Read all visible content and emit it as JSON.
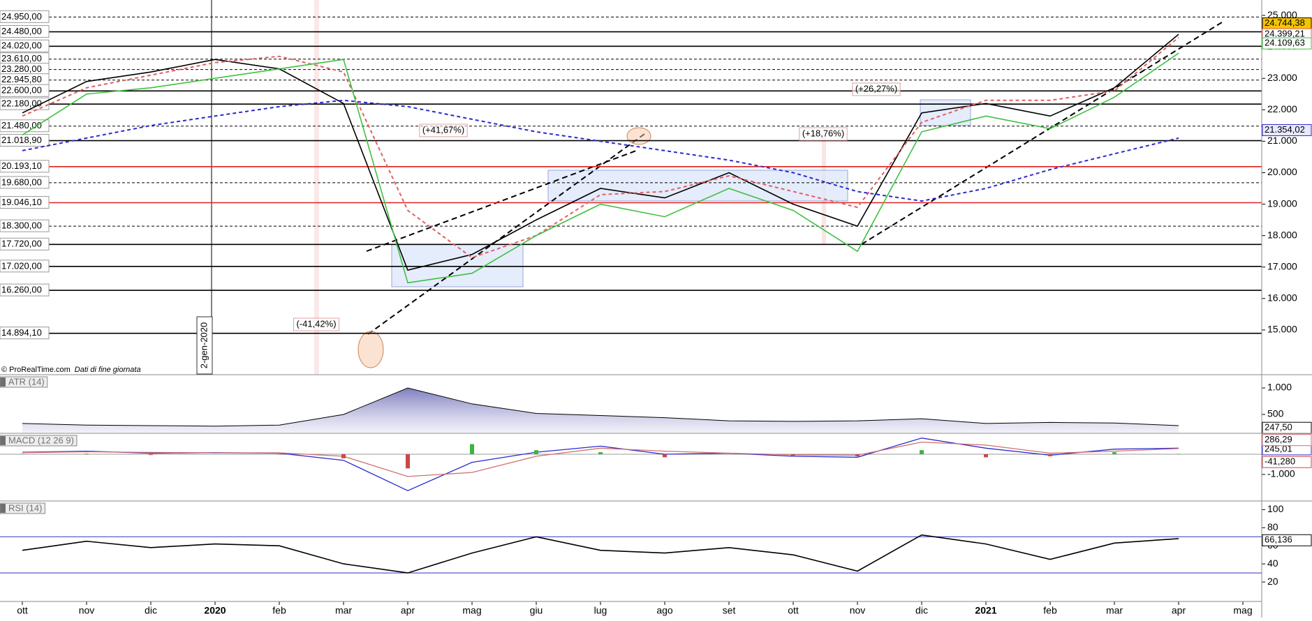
{
  "chart_data": [
    {
      "type": "line",
      "categories": [
        "ott",
        "nov",
        "dic",
        "2020",
        "feb",
        "mar",
        "apr",
        "mag",
        "giu",
        "lug",
        "ago",
        "set",
        "ott",
        "nov",
        "dic",
        "2021",
        "feb",
        "mar",
        "apr",
        "mag"
      ],
      "ylim": [
        13600,
        25490
      ],
      "yticks": [
        {
          "value": 15000,
          "label": "15.000"
        },
        {
          "value": 16000,
          "label": "16.000"
        },
        {
          "value": 17000,
          "label": "17.000"
        },
        {
          "value": 18000,
          "label": "18.000"
        },
        {
          "value": 19000,
          "label": "19.000"
        },
        {
          "value": 20000,
          "label": "20.000"
        },
        {
          "value": 21000,
          "label": "21.000"
        },
        {
          "value": 22000,
          "label": "22.000"
        },
        {
          "value": 23000,
          "label": "23.000"
        },
        {
          "value": 24000,
          "label": "24.000"
        },
        {
          "value": 25000,
          "label": "25.000"
        }
      ],
      "levels": [
        {
          "value": 24950,
          "label": "24.950,00",
          "color": "#000000",
          "style": "dashed"
        },
        {
          "value": 24480,
          "label": "24.480,00",
          "color": "#000000",
          "style": "solid"
        },
        {
          "value": 24020,
          "label": "24.020,00",
          "color": "#000000",
          "style": "solid"
        },
        {
          "value": 23610,
          "label": "23.610,00",
          "color": "#000000",
          "style": "dashed"
        },
        {
          "value": 23280,
          "label": "23.280,00",
          "color": "#000000",
          "style": "dashed"
        },
        {
          "value": 22945.8,
          "label": "22.945,80",
          "color": "#000000",
          "style": "dashed"
        },
        {
          "value": 22600,
          "label": "22.600,00",
          "color": "#000000",
          "style": "solid"
        },
        {
          "value": 22180,
          "label": "22.180,00",
          "color": "#000000",
          "style": "solid"
        },
        {
          "value": 21480,
          "label": "21.480,00",
          "color": "#000000",
          "style": "dashed"
        },
        {
          "value": 21018.9,
          "label": "21.018,90",
          "color": "#000000",
          "style": "solid"
        },
        {
          "value": 20193.1,
          "label": "20.193,10",
          "color": "#e02020",
          "style": "solid"
        },
        {
          "value": 19680,
          "label": "19.680,00",
          "color": "#000000",
          "style": "dashed"
        },
        {
          "value": 19046.1,
          "label": "19.046,10",
          "color": "#e02020",
          "style": "solid"
        },
        {
          "value": 18300,
          "label": "18.300,00",
          "color": "#000000",
          "style": "dashed"
        },
        {
          "value": 17720,
          "label": "17.720,00",
          "color": "#000000",
          "style": "solid"
        },
        {
          "value": 17020,
          "label": "17.020,00",
          "color": "#000000",
          "style": "solid"
        },
        {
          "value": 16260,
          "label": "16.260,00",
          "color": "#000000",
          "style": "solid"
        },
        {
          "value": 14894.1,
          "label": "14.894,10",
          "color": "#000000",
          "style": "solid"
        }
      ],
      "series": [
        {
          "color": "#000000",
          "style": "solid",
          "values": [
            21900,
            22900,
            23200,
            23600,
            23300,
            22200,
            16900,
            17400,
            18500,
            19500,
            19200,
            20000,
            19000,
            18300,
            21900,
            22200,
            21800,
            22700,
            24400,
            null
          ],
          "last_value": 24744.38,
          "last_label": "24.744,38",
          "label_bg": "#f5c400"
        },
        {
          "color": "#e06060",
          "style": "dashed",
          "values": [
            21800,
            22700,
            23100,
            23500,
            23700,
            23200,
            18800,
            17300,
            18000,
            19300,
            19400,
            19900,
            19400,
            18900,
            21600,
            22300,
            22300,
            22600,
            24300,
            null
          ],
          "last_value": 24399.21,
          "last_label": "24.399,21",
          "label_bg": "#ffffff"
        },
        {
          "color": "#2a2ad0",
          "style": "dashed",
          "values": [
            20700,
            21100,
            21500,
            21800,
            22100,
            22300,
            22100,
            21700,
            21300,
            21000,
            20700,
            20400,
            20000,
            19400,
            19100,
            19500,
            20100,
            20600,
            21100,
            null
          ],
          "last_value": 21354.02,
          "last_label": "21.354,02",
          "label_bg": "#e8e8ff"
        },
        {
          "color": "#40c040",
          "style": "solid",
          "values": [
            21200,
            22500,
            22700,
            23000,
            23300,
            23600,
            16500,
            16800,
            18000,
            19000,
            18600,
            19500,
            18800,
            17500,
            21300,
            21800,
            21400,
            22400,
            23800,
            null
          ],
          "last_value": 24109.63,
          "last_label": "24.109,63",
          "label_bg": "#ffffff"
        }
      ],
      "annotations": [
        "(-41,42%)",
        "(+41,67%)",
        "(+18,76%)",
        "(+26,27%)"
      ],
      "marker_label": "2-gen-2020",
      "source": "© ProRealTime.com",
      "note": "Dati di fine giornata"
    },
    {
      "type": "area",
      "title": "ATR (14)",
      "ylim": [
        158,
        1224
      ],
      "yticks": [
        {
          "value": 1000,
          "label": "1.000"
        },
        500
      ],
      "color": "#5a5aa8",
      "values": [
        330,
        300,
        290,
        280,
        300,
        500,
        1000,
        700,
        520,
        480,
        440,
        380,
        370,
        380,
        420,
        330,
        350,
        340,
        290,
        null
      ],
      "last_value": 247.5,
      "last_label": "247,50"
    },
    {
      "type": "macd",
      "title": "MACD (12 26 9)",
      "ylim": [
        -2276,
        965
      ],
      "yticks": [
        {
          "value": -1000,
          "label": "-1.000"
        }
      ],
      "series": [
        {
          "kind": "line",
          "color": "#2a2ad0",
          "values": [
            100,
            150,
            50,
            80,
            50,
            -300,
            -1800,
            -400,
            100,
            400,
            0,
            50,
            -100,
            -150,
            800,
            300,
            -50,
            250,
            300,
            null
          ],
          "last_value": 245.01,
          "last_label": "245,01"
        },
        {
          "kind": "line",
          "color": "#d07070",
          "values": [
            80,
            120,
            90,
            70,
            70,
            -100,
            -1100,
            -900,
            -100,
            300,
            150,
            50,
            -30,
            -50,
            600,
            450,
            50,
            150,
            280,
            null
          ],
          "last_value": 286.29,
          "last_label": "286,29"
        },
        {
          "kind": "histogram",
          "color": "#c84848",
          "color_up": "#3cb43c",
          "values": [
            20,
            30,
            -40,
            10,
            -20,
            -200,
            -700,
            500,
            200,
            100,
            -150,
            0,
            -70,
            -100,
            200,
            -150,
            -100,
            100,
            20,
            null
          ],
          "last_value": -41.28,
          "last_label": "-41,280"
        }
      ]
    },
    {
      "type": "line",
      "title": "RSI (14)",
      "ylim": [
        0,
        108
      ],
      "yticks": [
        100,
        80,
        60,
        40,
        20
      ],
      "bands": [
        70,
        30
      ],
      "band_color": "#3030c0",
      "color": "#000000",
      "values": [
        55,
        65,
        58,
        62,
        60,
        40,
        30,
        52,
        70,
        55,
        52,
        58,
        50,
        32,
        72,
        62,
        45,
        63,
        68,
        null
      ],
      "last_value": 66.136,
      "last_label": "66,136"
    }
  ]
}
